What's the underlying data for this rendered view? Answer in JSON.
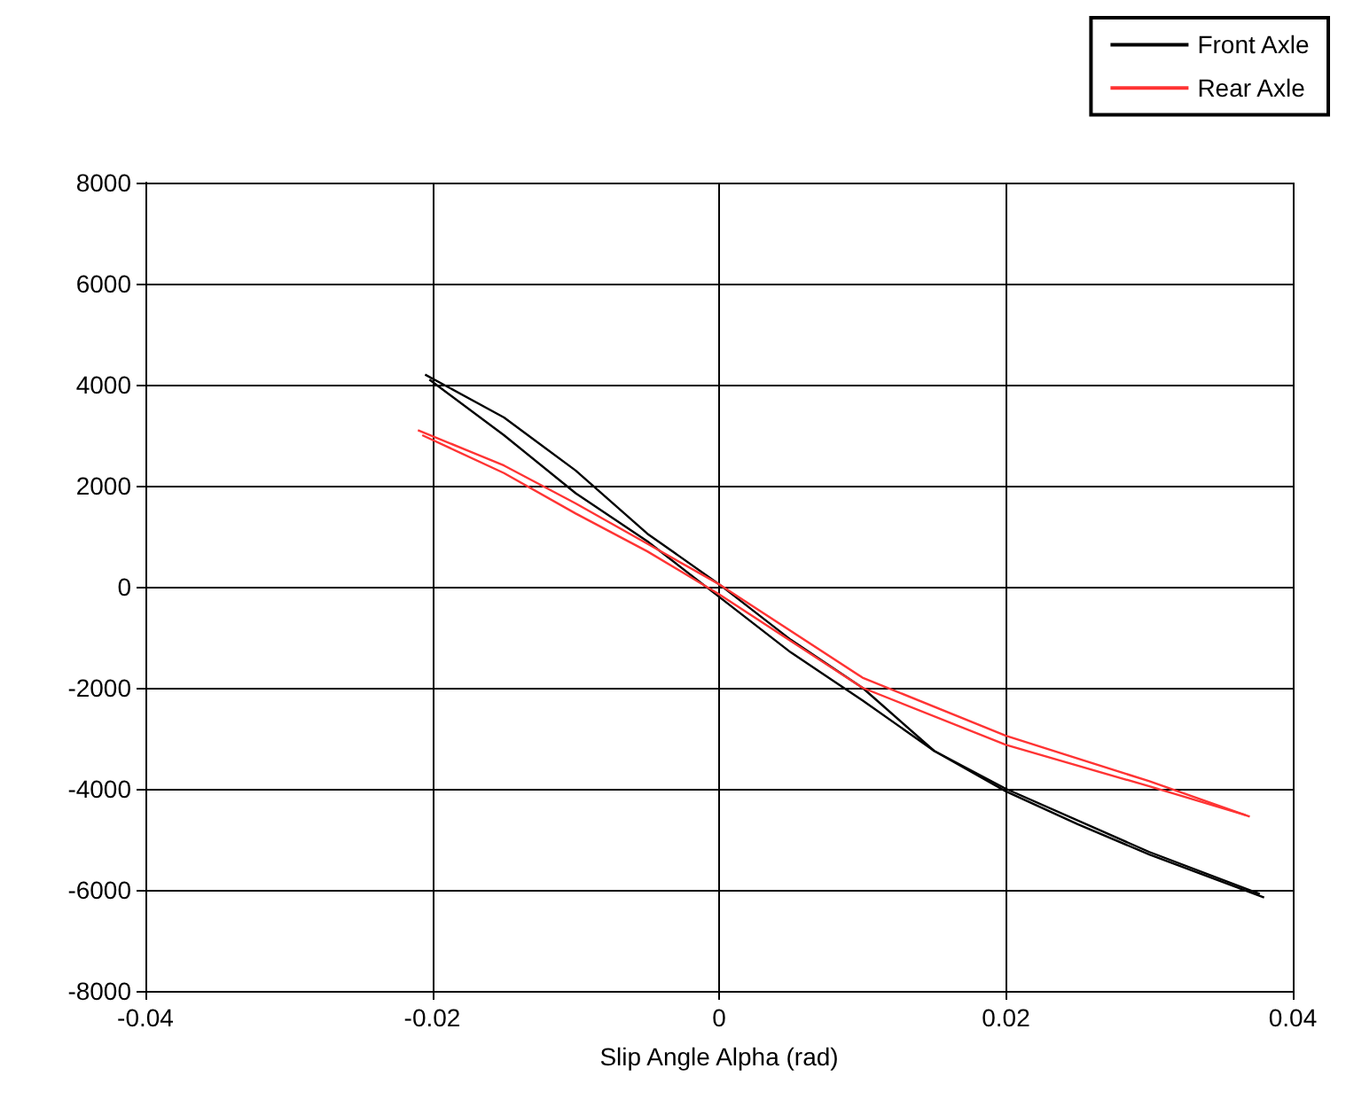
{
  "chart_data": {
    "type": "line",
    "xlabel": "Slip Angle Alpha (rad)",
    "xlim": [
      -0.04,
      0.04
    ],
    "xticks": [
      -0.04,
      -0.02,
      0,
      0.02,
      0.04
    ],
    "ylim": [
      -8000,
      8000
    ],
    "yticks": [
      -8000,
      -6000,
      -4000,
      -2000,
      0,
      2000,
      4000,
      6000,
      8000
    ],
    "grid": true,
    "legend": "top right",
    "marker": "none",
    "line_style": "solid",
    "series": [
      {
        "name": "Front Axle",
        "color": "#000000",
        "x": [
          -0.0205,
          -0.015,
          -0.01,
          -0.005,
          0,
          0.005,
          0.01,
          0.015,
          0.02,
          0.025,
          0.03,
          0.038
        ],
        "values": [
          4200,
          3350,
          2300,
          1050,
          50,
          -1050,
          -2000,
          -3250,
          -4050,
          -4700,
          -5300,
          -6150
        ]
      },
      {
        "color": "#000000",
        "x": [
          -0.0202,
          -0.015,
          -0.01,
          -0.005,
          0,
          0.005,
          0.01,
          0.015,
          0.02,
          0.03,
          0.0377
        ],
        "values": [
          4100,
          3000,
          1850,
          900,
          -200,
          -1300,
          -2250,
          -3250,
          -4000,
          -5250,
          -6080
        ]
      },
      {
        "name": "Rear Axle",
        "color": "#ff3333",
        "x": [
          -0.021,
          -0.015,
          -0.01,
          -0.005,
          0,
          0.01,
          0.02,
          0.03,
          0.037
        ],
        "values": [
          3100,
          2400,
          1650,
          850,
          50,
          -1800,
          -2950,
          -3850,
          -4550
        ]
      },
      {
        "color": "#ff3333",
        "x": [
          -0.0207,
          -0.015,
          -0.01,
          -0.005,
          0,
          0.01,
          0.02,
          0.03,
          0.0367
        ],
        "values": [
          3000,
          2250,
          1450,
          700,
          -150,
          -2000,
          -3130,
          -3950,
          -4520
        ]
      }
    ]
  }
}
